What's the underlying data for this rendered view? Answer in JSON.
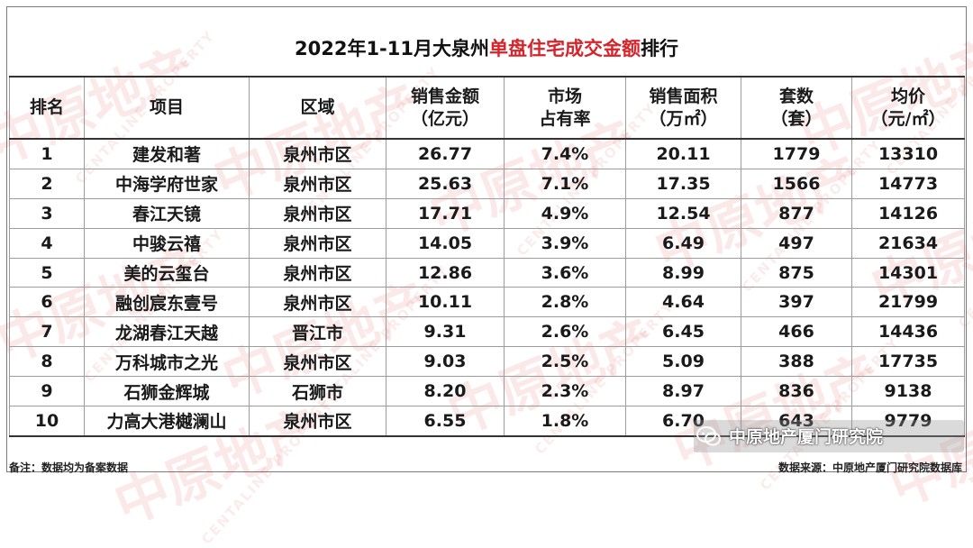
{
  "title": {
    "prefix": "2022年1-11月大泉州",
    "highlight": "单盘住宅成交金额",
    "suffix": "排行",
    "highlight_color": "#d8232a"
  },
  "watermark": {
    "text": "中原地产",
    "sub": "CENTALINE PROPERTY"
  },
  "table": {
    "headers": [
      {
        "line1": "排名",
        "line2": ""
      },
      {
        "line1": "项目",
        "line2": ""
      },
      {
        "line1": "区域",
        "line2": ""
      },
      {
        "line1": "销售金额",
        "line2": "（亿元）"
      },
      {
        "line1": "市场",
        "line2": "占有率"
      },
      {
        "line1": "销售面积",
        "line2": "（万㎡）"
      },
      {
        "line1": "套数",
        "line2": "（套）"
      },
      {
        "line1": "均价",
        "line2": "（元/㎡）"
      }
    ],
    "rows": [
      {
        "rank": "1",
        "project": "建发和著",
        "region": "泉州市区",
        "amount": "26.77",
        "share": "7.4%",
        "area": "20.11",
        "units": "1779",
        "price": "13310"
      },
      {
        "rank": "2",
        "project": "中海学府世家",
        "region": "泉州市区",
        "amount": "25.63",
        "share": "7.1%",
        "area": "17.35",
        "units": "1566",
        "price": "14773"
      },
      {
        "rank": "3",
        "project": "春江天镜",
        "region": "泉州市区",
        "amount": "17.71",
        "share": "4.9%",
        "area": "12.54",
        "units": "877",
        "price": "14126"
      },
      {
        "rank": "4",
        "project": "中骏云禧",
        "region": "泉州市区",
        "amount": "14.05",
        "share": "3.9%",
        "area": "6.49",
        "units": "497",
        "price": "21634"
      },
      {
        "rank": "5",
        "project": "美的云玺台",
        "region": "泉州市区",
        "amount": "12.86",
        "share": "3.6%",
        "area": "8.99",
        "units": "875",
        "price": "14301"
      },
      {
        "rank": "6",
        "project": "融创宸东壹号",
        "region": "泉州市区",
        "amount": "10.11",
        "share": "2.8%",
        "area": "4.64",
        "units": "397",
        "price": "21799"
      },
      {
        "rank": "7",
        "project": "龙湖春江天越",
        "region": "晋江市",
        "amount": "9.31",
        "share": "2.6%",
        "area": "6.45",
        "units": "466",
        "price": "14436"
      },
      {
        "rank": "8",
        "project": "万科城市之光",
        "region": "泉州市区",
        "amount": "9.03",
        "share": "2.5%",
        "area": "5.09",
        "units": "388",
        "price": "17735"
      },
      {
        "rank": "9",
        "project": "石狮金辉城",
        "region": "石狮市",
        "amount": "8.20",
        "share": "2.3%",
        "area": "8.97",
        "units": "836",
        "price": "9138"
      },
      {
        "rank": "10",
        "project": "力高大港樾澜山",
        "region": "泉州市区",
        "amount": "6.55",
        "share": "1.8%",
        "area": "6.70",
        "units": "643",
        "price": "9779"
      }
    ]
  },
  "footer": {
    "note": "备注：数据均为备案数据",
    "source": "数据来源：中原地产厦门研究院数据库"
  },
  "brand": {
    "name": "中原地产厦门研究院",
    "logo_icon": "wechat-icon"
  }
}
